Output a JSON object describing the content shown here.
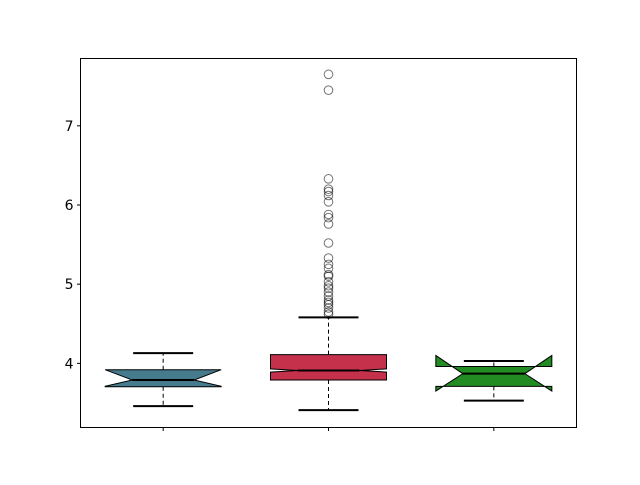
{
  "chart_data": {
    "type": "boxplot",
    "notched": true,
    "title": "",
    "xlabel": "",
    "ylabel": "",
    "ylim": [
      3.19,
      7.85
    ],
    "yticks": [
      4,
      5,
      6,
      7
    ],
    "xtick_labels": [
      "",
      "",
      ""
    ],
    "grid": false,
    "boxes": [
      {
        "position": 1,
        "color": "#457b8d",
        "whisker_low": 3.46,
        "q1": 3.705,
        "median": 3.79,
        "q3": 3.92,
        "whisker_high": 4.13,
        "notch_low": 3.71,
        "notch_high": 3.92,
        "outliers": []
      },
      {
        "position": 2,
        "color": "#c5304a",
        "whisker_low": 3.41,
        "q1": 3.79,
        "median": 3.91,
        "q3": 4.11,
        "whisker_high": 4.58,
        "notch_low": 3.89,
        "notch_high": 3.93,
        "outliers": [
          7.65,
          7.45,
          6.33,
          6.2,
          6.17,
          6.12,
          6.04,
          5.88,
          5.84,
          5.76,
          5.52,
          5.33,
          5.25,
          5.2,
          5.12,
          5.1,
          5.03,
          4.98,
          4.95,
          4.9,
          4.85,
          4.8,
          4.77,
          4.74,
          4.7,
          4.65,
          4.62
        ]
      },
      {
        "position": 3,
        "color": "#228b22",
        "whisker_low": 3.53,
        "q1": 3.71,
        "median": 3.87,
        "q3": 3.96,
        "whisker_high": 4.03,
        "notch_low": 3.65,
        "notch_high": 4.1,
        "outliers": []
      }
    ]
  }
}
